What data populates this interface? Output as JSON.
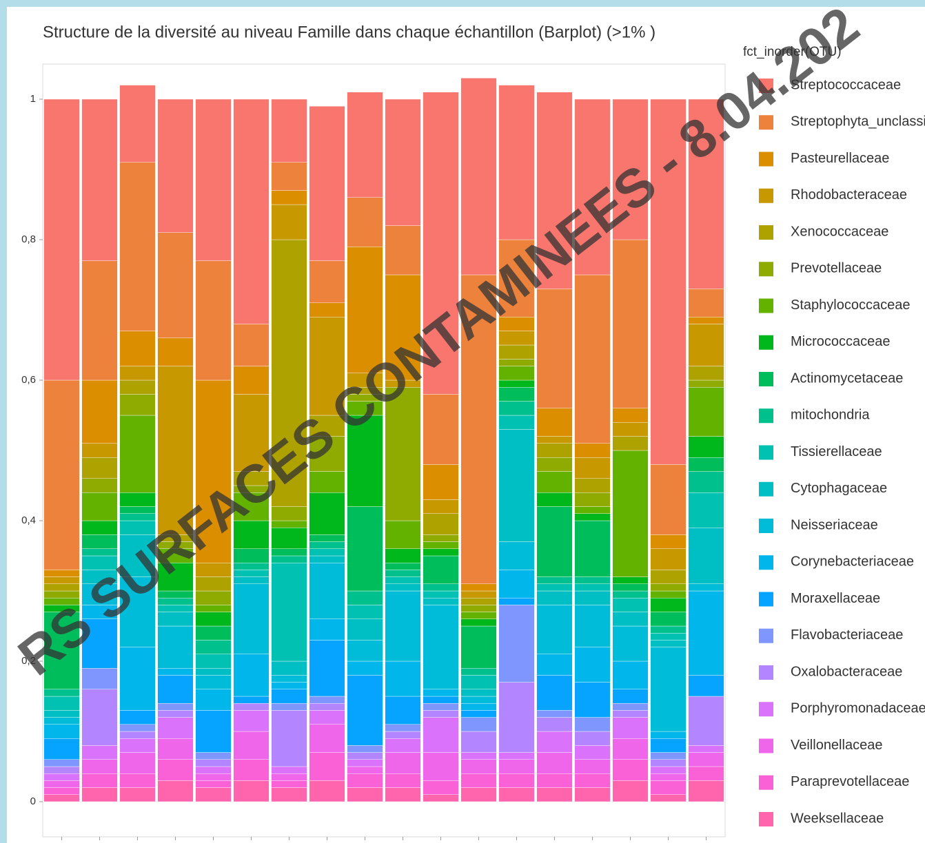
{
  "chart_data": {
    "type": "stacked_bar",
    "title": "Structure de la diversité au niveau Famille dans chaque échantillon (Barplot) (>1% )",
    "legend_title": "fct_inorder(OTU)",
    "watermark": "RS SURFACES CONTAMINEES - 8.04.202",
    "categories": [
      null,
      null,
      null,
      null,
      null,
      null,
      null,
      null,
      null,
      null,
      null,
      null,
      null,
      null,
      null,
      null,
      null,
      null
    ],
    "ylim": [
      -0.05,
      1.05
    ],
    "yticks": [
      0,
      {
        "value": 0.2,
        "label": "0,2"
      },
      {
        "value": 0.4,
        "label": "0,4"
      },
      {
        "value": 0.6,
        "label": "0,6"
      },
      {
        "value": 0.8,
        "label": "0,8"
      },
      1
    ],
    "legend": "right",
    "series": [
      {
        "name": "Streptococcaceae",
        "color": "#F8766D",
        "values": [
          0.4,
          0.23,
          0.11,
          0.19,
          0.23,
          0.32,
          0.09,
          0.22,
          0.15,
          0.18,
          0.43,
          0.28,
          0.22,
          0.28,
          0.25,
          0.2,
          0.52,
          0.27
        ]
      },
      {
        "name": "Streptophyta_unclassif",
        "color": "#EC823C",
        "values": [
          0.27,
          0.17,
          0.24,
          0.15,
          0.17,
          0.06,
          0.04,
          0.06,
          0.07,
          0.07,
          0.1,
          0.44,
          0.11,
          0.17,
          0.24,
          0.24,
          0.1,
          0.04
        ]
      },
      {
        "name": "Pasteurellaceae",
        "color": "#DB8E00",
        "values": [
          0.01,
          0.09,
          0.05,
          0.04,
          0.26,
          0.04,
          0.02,
          0.02,
          0.18,
          0.15,
          0.05,
          0.01,
          0.02,
          0.04,
          0.02,
          0.02,
          0.02,
          0.01
        ]
      },
      {
        "name": "Rhodobacteraceae",
        "color": "#C79800",
        "values": [
          0.01,
          0.02,
          0.02,
          0.24,
          0.02,
          0.11,
          0.05,
          0.14,
          0.02,
          0.01,
          0.02,
          0.01,
          0.02,
          0.01,
          0.03,
          0.02,
          0.03,
          0.06
        ]
      },
      {
        "name": "Xenococcaceae",
        "color": "#AEA200",
        "values": [
          0.01,
          0.03,
          0.02,
          0.01,
          0.02,
          0.02,
          0.38,
          0.03,
          0.01,
          0.0,
          0.03,
          0.01,
          0.02,
          0.02,
          0.02,
          0.02,
          0.02,
          0.02
        ]
      },
      {
        "name": "Prevotellaceae",
        "color": "#8FAA00",
        "values": [
          0.01,
          0.02,
          0.03,
          0.01,
          0.02,
          0.01,
          0.02,
          0.05,
          0.01,
          0.19,
          0.01,
          0.01,
          0.01,
          0.02,
          0.02,
          0.0,
          0.01,
          0.01
        ]
      },
      {
        "name": "Staphylococcaceae",
        "color": "#64B200",
        "values": [
          0.01,
          0.04,
          0.11,
          0.02,
          0.01,
          0.04,
          0.01,
          0.03,
          0.02,
          0.04,
          0.01,
          0.01,
          0.02,
          0.03,
          0.01,
          0.18,
          0.01,
          0.07
        ]
      },
      {
        "name": "Micrococcaceae",
        "color": "#00B81B",
        "values": [
          0.01,
          0.02,
          0.02,
          0.04,
          0.02,
          0.04,
          0.03,
          0.06,
          0.13,
          0.02,
          0.01,
          0.01,
          0.01,
          0.02,
          0.01,
          0.01,
          0.02,
          0.03
        ]
      },
      {
        "name": "Actinomycetaceae",
        "color": "#00BD5C",
        "values": [
          0.11,
          0.02,
          0.01,
          0.01,
          0.02,
          0.02,
          0.01,
          0.01,
          0.12,
          0.01,
          0.04,
          0.06,
          0.02,
          0.1,
          0.08,
          0.01,
          0.02,
          0.02
        ]
      },
      {
        "name": "mitochondria",
        "color": "#00C08D",
        "values": [
          0.01,
          0.01,
          0.01,
          0.01,
          0.02,
          0.01,
          0.01,
          0.01,
          0.02,
          0.01,
          0.01,
          0.01,
          0.02,
          0.01,
          0.01,
          0.01,
          0.01,
          0.03
        ]
      },
      {
        "name": "Tissierellaceae",
        "color": "#00C1B2",
        "values": [
          0.02,
          0.02,
          0.02,
          0.01,
          0.02,
          0.01,
          0.14,
          0.01,
          0.02,
          0.01,
          0.01,
          0.02,
          0.02,
          0.01,
          0.01,
          0.02,
          0.01,
          0.05
        ]
      },
      {
        "name": "Cytophagaceae",
        "color": "#00BFC4",
        "values": [
          0.01,
          0.02,
          0.06,
          0.02,
          0.01,
          0.01,
          0.02,
          0.01,
          0.03,
          0.01,
          0.01,
          0.01,
          0.16,
          0.02,
          0.02,
          0.02,
          0.01,
          0.08
        ]
      },
      {
        "name": "Neisseriaceae",
        "color": "#00BCD8",
        "values": [
          0.01,
          0.03,
          0.1,
          0.06,
          0.02,
          0.1,
          0.01,
          0.08,
          0.03,
          0.1,
          0.12,
          0.01,
          0.04,
          0.07,
          0.06,
          0.05,
          0.12,
          0.01
        ]
      },
      {
        "name": "Corynebacteriaceae",
        "color": "#00B6EB",
        "values": [
          0.02,
          0.02,
          0.09,
          0.01,
          0.03,
          0.06,
          0.01,
          0.03,
          0.02,
          0.05,
          0.01,
          0.01,
          0.04,
          0.03,
          0.05,
          0.04,
          0.01,
          0.12
        ]
      },
      {
        "name": "Moraxellaceae",
        "color": "#06A4FF",
        "values": [
          0.03,
          0.07,
          0.02,
          0.04,
          0.06,
          0.01,
          0.02,
          0.08,
          0.1,
          0.04,
          0.01,
          0.01,
          0.01,
          0.05,
          0.05,
          0.02,
          0.02,
          0.03
        ]
      },
      {
        "name": "Flavobacteriaceae",
        "color": "#7F96FF",
        "values": [
          0.01,
          0.03,
          0.01,
          0.01,
          0.01,
          0.0,
          0.01,
          0.01,
          0.01,
          0.01,
          0.01,
          0.02,
          0.11,
          0.01,
          0.02,
          0.01,
          0.01,
          0.0
        ]
      },
      {
        "name": "Oxalobacteraceae",
        "color": "#B385FF",
        "values": [
          0.01,
          0.08,
          0.01,
          0.01,
          0.01,
          0.01,
          0.08,
          0.01,
          0.01,
          0.01,
          0.01,
          0.03,
          0.1,
          0.02,
          0.02,
          0.01,
          0.01,
          0.07
        ]
      },
      {
        "name": "Porphyromonadaceae",
        "color": "#DB72FB",
        "values": [
          0.01,
          0.02,
          0.02,
          0.03,
          0.01,
          0.03,
          0.01,
          0.02,
          0.01,
          0.02,
          0.05,
          0.01,
          0.01,
          0.03,
          0.02,
          0.03,
          0.01,
          0.01
        ]
      },
      {
        "name": "Veillonellaceae",
        "color": "#F066EA",
        "values": [
          0.01,
          0.02,
          0.03,
          0.03,
          0.01,
          0.04,
          0.01,
          0.04,
          0.01,
          0.03,
          0.04,
          0.02,
          0.02,
          0.03,
          0.02,
          0.03,
          0.01,
          0.02
        ]
      },
      {
        "name": "Paraprevotellaceae",
        "color": "#FB61D7",
        "values": [
          0.01,
          0.02,
          0.02,
          0.03,
          0.01,
          0.03,
          0.01,
          0.04,
          0.02,
          0.02,
          0.02,
          0.02,
          0.02,
          0.02,
          0.02,
          0.03,
          0.02,
          0.02
        ]
      },
      {
        "name": "Weeksellaceae",
        "color": "#FF65AC",
        "values": [
          0.01,
          0.02,
          0.02,
          0.03,
          0.02,
          0.03,
          0.02,
          0.03,
          0.02,
          0.02,
          0.01,
          0.02,
          0.02,
          0.02,
          0.02,
          0.03,
          0.01,
          0.03
        ]
      }
    ]
  }
}
